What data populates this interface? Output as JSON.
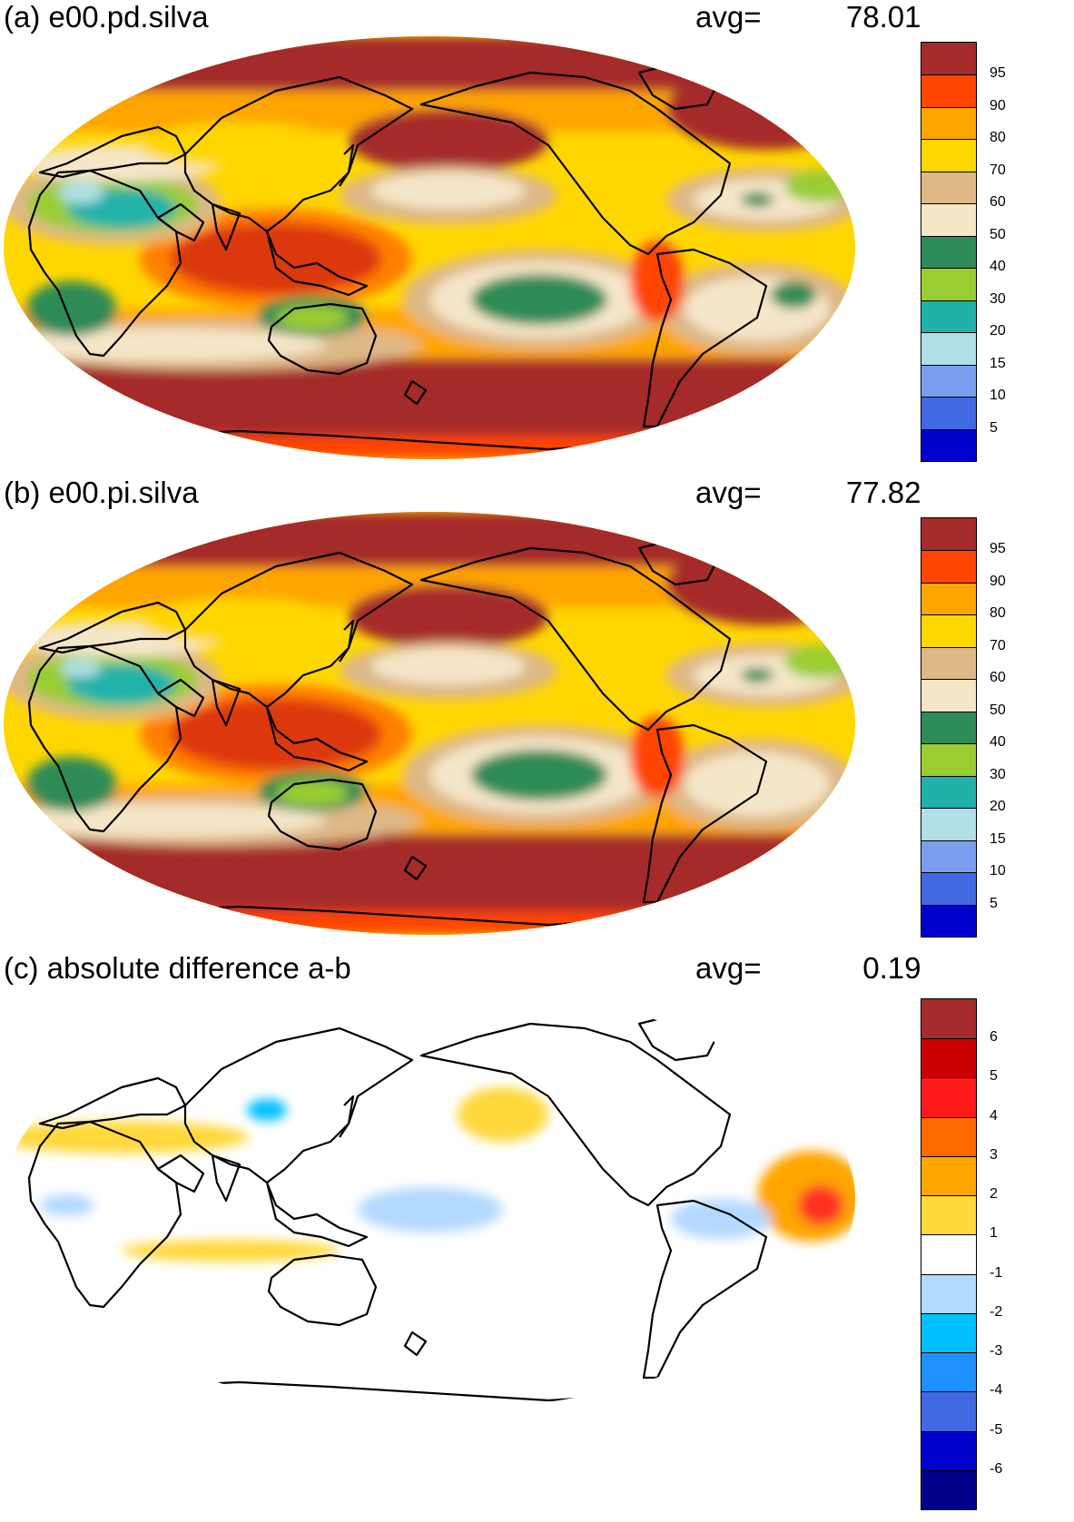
{
  "panels": [
    {
      "title": "(a) e00.pd.silva",
      "avg_label": "avg=",
      "avg_value": "78.01",
      "colorbar": {
        "colors": [
          "#a52a2a",
          "#ff4500",
          "#ffa500",
          "#ffd700",
          "#deb887",
          "#f5e6c8",
          "#2e8b57",
          "#9acd32",
          "#20b2aa",
          "#b0e0e6",
          "#7b9ff0",
          "#4169e1",
          "#0000cd"
        ],
        "labels": [
          "95",
          "90",
          "80",
          "70",
          "60",
          "50",
          "40",
          "30",
          "20",
          "15",
          "10",
          "5"
        ]
      }
    },
    {
      "title": "(b) e00.pi.silva",
      "avg_label": "avg=",
      "avg_value": "77.82",
      "colorbar": {
        "colors": [
          "#a52a2a",
          "#ff4500",
          "#ffa500",
          "#ffd700",
          "#deb887",
          "#f5e6c8",
          "#2e8b57",
          "#9acd32",
          "#20b2aa",
          "#b0e0e6",
          "#7b9ff0",
          "#4169e1",
          "#0000cd"
        ],
        "labels": [
          "95",
          "90",
          "80",
          "70",
          "60",
          "50",
          "40",
          "30",
          "20",
          "15",
          "10",
          "5"
        ]
      }
    },
    {
      "title": "(c) absolute difference a-b",
      "avg_label": "avg=",
      "avg_value": "0.19",
      "colorbar": {
        "colors": [
          "#a52a2a",
          "#cc0000",
          "#ff1a1a",
          "#ff6a00",
          "#ffa500",
          "#ffd83a",
          "#ffffff",
          "#b3d9ff",
          "#00bfff",
          "#1e90ff",
          "#4169e1",
          "#0000cd",
          "#00008b"
        ],
        "labels": [
          "6",
          "5",
          "4",
          "3",
          "2",
          "1",
          "-1",
          "-2",
          "-3",
          "-4",
          "-5",
          "-6"
        ]
      }
    }
  ]
}
